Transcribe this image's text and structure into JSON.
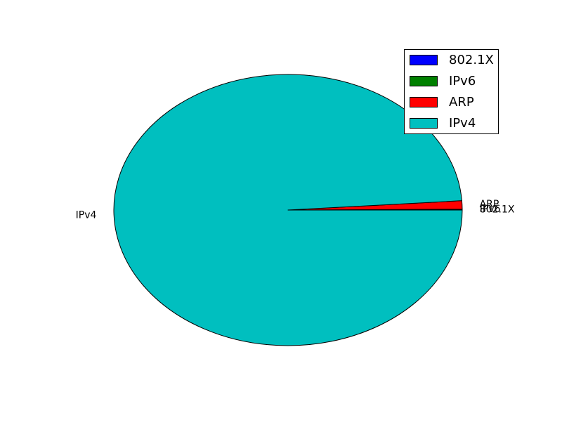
{
  "chart_data": {
    "type": "pie",
    "title": "",
    "legend_position": "top-right",
    "slices": [
      {
        "label": "802.1X",
        "value": 0.05,
        "color": "#0000ff"
      },
      {
        "label": "IPv6",
        "value": 0.05,
        "color": "#008000"
      },
      {
        "label": "ARP",
        "value": 1.0,
        "color": "#ff0000"
      },
      {
        "label": "IPv4",
        "value": 98.9,
        "color": "#00bfbf"
      }
    ]
  }
}
